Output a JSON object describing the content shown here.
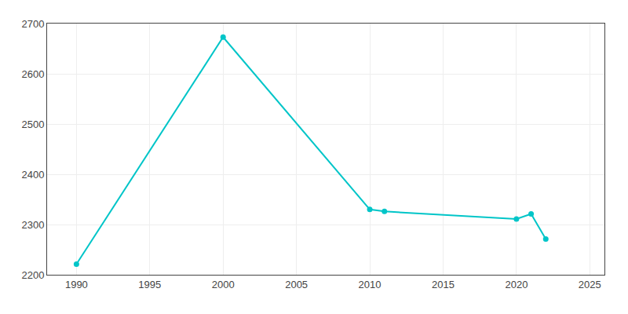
{
  "chart_data": {
    "type": "line",
    "x": [
      1990,
      2000,
      2010,
      2011,
      2020,
      2021,
      2022
    ],
    "values": [
      2221,
      2673,
      2330,
      2326,
      2311,
      2321,
      2271
    ],
    "color": "#00C5C8",
    "marker": "circle",
    "xlim": [
      1988,
      2026
    ],
    "ylim": [
      2200,
      2700
    ],
    "xticks": [
      1990,
      1995,
      2000,
      2005,
      2010,
      2015,
      2020,
      2025
    ],
    "yticks": [
      2200,
      2300,
      2400,
      2500,
      2600,
      2700
    ],
    "grid": true
  }
}
